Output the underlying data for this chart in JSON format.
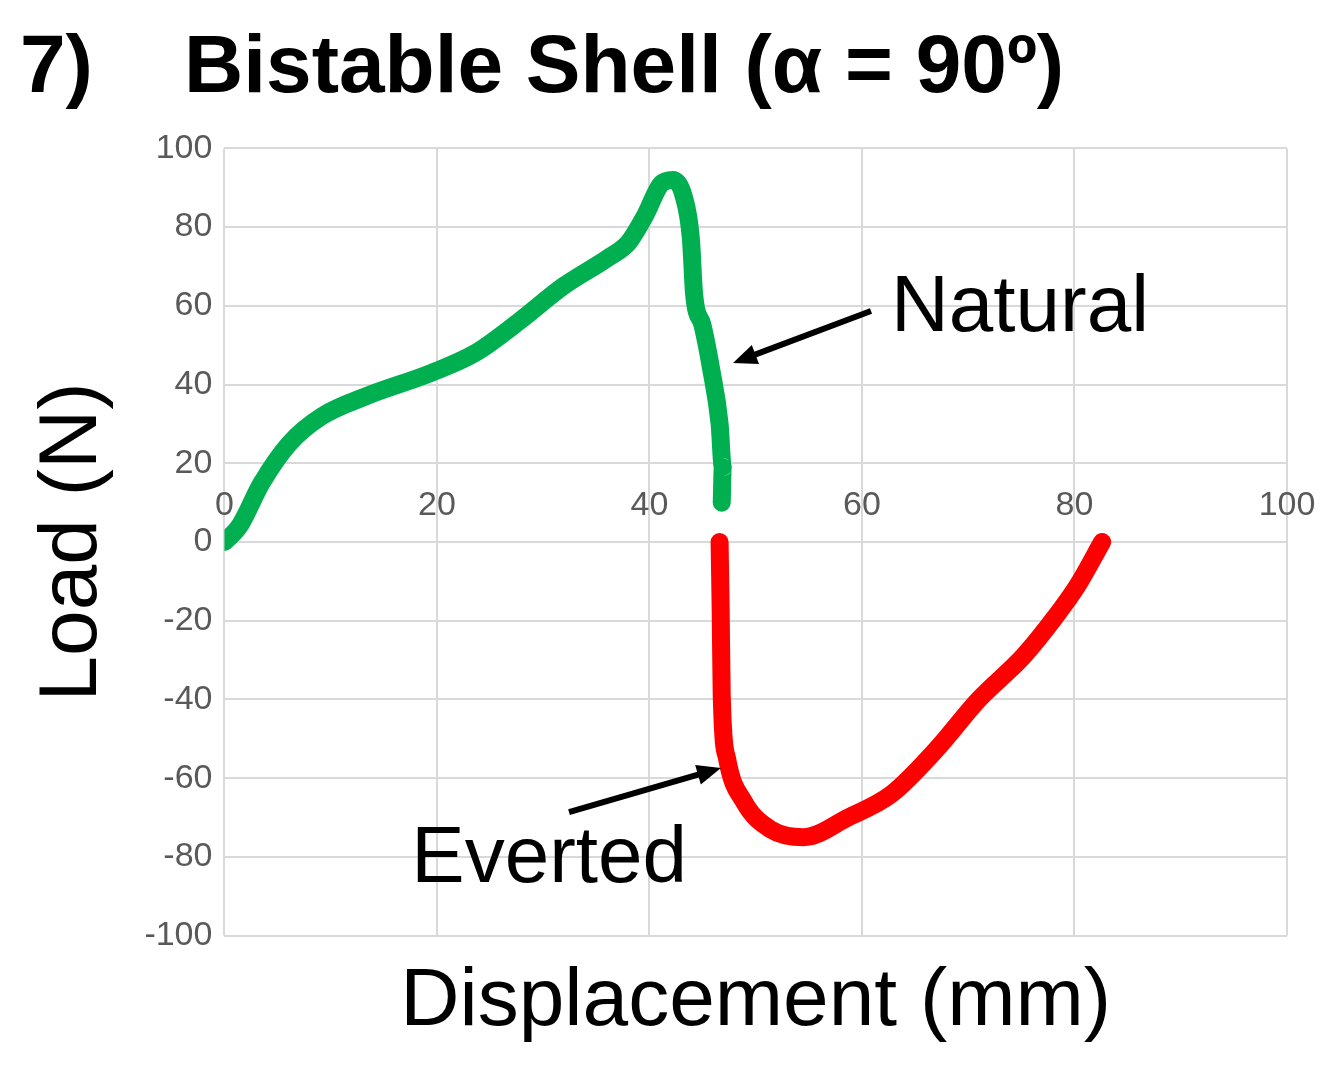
{
  "chart_data": {
    "type": "line",
    "title": "7)    Bistable Shell (α = 90º)",
    "xlabel": "Displacement (mm)",
    "ylabel": "Load (N)",
    "xlim": [
      0,
      100
    ],
    "xticks": [
      0,
      20,
      40,
      60,
      80,
      100
    ],
    "ylim": [
      -100,
      100
    ],
    "yticks": [
      -100,
      -80,
      -60,
      -40,
      -20,
      0,
      20,
      40,
      60,
      80,
      100
    ],
    "grid": true,
    "marker": "none",
    "line_style": "solid",
    "series": [
      {
        "color": "#00b050",
        "x": [
          0,
          1.4,
          3.5,
          6.1,
          9.2,
          13.3,
          19.5,
          23.6,
          27.7,
          31.9,
          36,
          38,
          39.6,
          41.1,
          42.2,
          43.2,
          43.9,
          44.2,
          45,
          45.8,
          46.6,
          46.9,
          46.8
        ],
        "values": [
          0,
          4,
          15,
          25,
          32,
          37,
          43,
          48,
          56,
          65,
          72,
          76,
          83,
          91,
          92,
          88,
          77,
          63,
          55,
          44,
          30,
          19,
          10
        ]
      },
      {
        "color": "#ff0000",
        "x": [
          46.6,
          46.7,
          46.8,
          47.3,
          48.9,
          51.4,
          54.5,
          58.7,
          62.8,
          66.9,
          71,
          75.2,
          78.2,
          80.3,
          82.6
        ],
        "values": [
          0,
          -17,
          -39,
          -55,
          -66,
          -73,
          -75,
          -70,
          -64,
          -53,
          -40,
          -29,
          -19,
          -11,
          0
        ]
      }
    ],
    "annotations": [
      {
        "text": "Natural",
        "x": 45.8,
        "y": 44
      },
      {
        "text": "Everted",
        "x": 47.5,
        "y": -58
      }
    ]
  }
}
